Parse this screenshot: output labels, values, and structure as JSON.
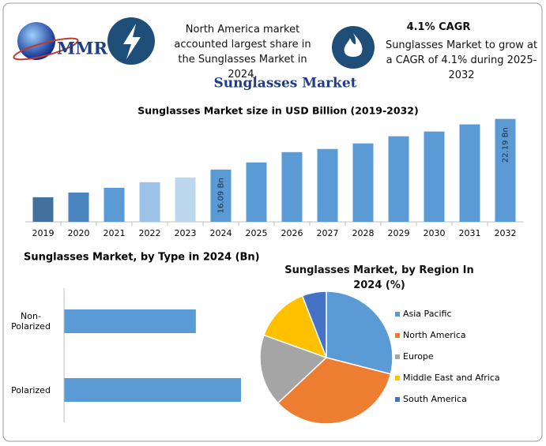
{
  "header": {
    "logo": "MMR",
    "callout_1": "North America market accounted largest share in the Sunglasses Market in 2024.",
    "callout_2_title": "4.1% CAGR",
    "callout_2": "Sunglasses Market to grow at a CAGR of 4.1% during 2025-2032"
  },
  "title": "Sunglasses Market",
  "chart_data": [
    {
      "type": "bar",
      "orientation": "vertical",
      "title": "Sunglasses Market size in USD Billion (2019-2032)",
      "categories": [
        "2019",
        "2020",
        "2021",
        "2022",
        "2023",
        "2024",
        "2025",
        "2026",
        "2027",
        "2028",
        "2029",
        "2030",
        "2031",
        "2032"
      ],
      "values": [
        12.76,
        13.33,
        13.9,
        14.57,
        15.14,
        16.09,
        16.95,
        18.19,
        18.57,
        19.24,
        20.1,
        20.67,
        21.53,
        22.19
      ],
      "value_labels": [
        null,
        null,
        null,
        null,
        null,
        "16.09 Bn",
        null,
        null,
        null,
        null,
        null,
        null,
        null,
        "22.19 Bn"
      ],
      "colors": [
        "#41719c",
        "#4a84be",
        "#5b9bd5",
        "#9dc3e6",
        "#bdd7ee",
        "#5b9bd5",
        "#5b9bd5",
        "#5b9bd5",
        "#5b9bd5",
        "#5b9bd5",
        "#5b9bd5",
        "#5b9bd5",
        "#5b9bd5",
        "#5b9bd5"
      ],
      "ylim": [
        9.8,
        23.2
      ]
    },
    {
      "type": "bar",
      "orientation": "horizontal",
      "title": "Sunglasses Market, by Type in 2024 (Bn)",
      "categories": [
        "Non-Polarized",
        "Polarized"
      ],
      "values": [
        6.87,
        9.22
      ],
      "color": "#5b9bd5",
      "xlim": [
        0,
        10.25
      ]
    },
    {
      "type": "pie",
      "title": "Sunglasses Market, by Region In 2024 (%)",
      "categories": [
        "Asia Pacific",
        "North America",
        "Europe",
        "Middle East and Africa",
        "South America"
      ],
      "values": [
        29,
        34,
        17.5,
        13.6,
        5.9
      ],
      "colors": [
        "#5b9bd5",
        "#ed7d31",
        "#a5a5a5",
        "#ffc000",
        "#4472c4"
      ]
    }
  ]
}
